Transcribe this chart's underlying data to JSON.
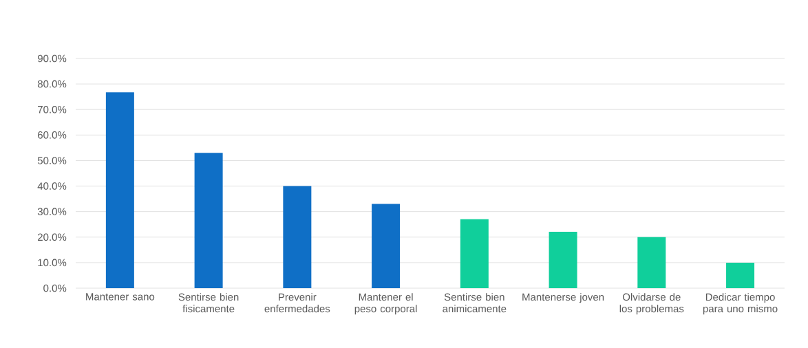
{
  "chart_data": {
    "type": "bar",
    "categories": [
      "Mantener sano",
      "Sentirse bien fisicamente",
      "Prevenir enfermedades",
      "Mantener el peso corporal",
      "Sentirse bien animicamente",
      "Mantenerse joven",
      "Olvidarse de los problemas",
      "Dedicar tiempo para uno mismo"
    ],
    "values": [
      76.7,
      53.0,
      40.0,
      33.0,
      27.0,
      22.1,
      20.0,
      10.0
    ],
    "colors": [
      "#0f6fc6",
      "#0f6fc6",
      "#0f6fc6",
      "#0f6fc6",
      "#10cf9b",
      "#10cf9b",
      "#10cf9b",
      "#10cf9b"
    ],
    "ylim": [
      0,
      90
    ],
    "yticks": [
      {
        "value": 0,
        "label": "0.0%"
      },
      {
        "value": 10,
        "label": "10.0%"
      },
      {
        "value": 20,
        "label": "20.0%"
      },
      {
        "value": 30,
        "label": "30.0%"
      },
      {
        "value": 40,
        "label": "40.0%"
      },
      {
        "value": 50,
        "label": "50.0%"
      },
      {
        "value": 60,
        "label": "60.0%"
      },
      {
        "value": 70,
        "label": "70.0%"
      },
      {
        "value": 80,
        "label": "80.0%"
      },
      {
        "value": 90,
        "label": "90.0%"
      }
    ],
    "grid": "y"
  }
}
